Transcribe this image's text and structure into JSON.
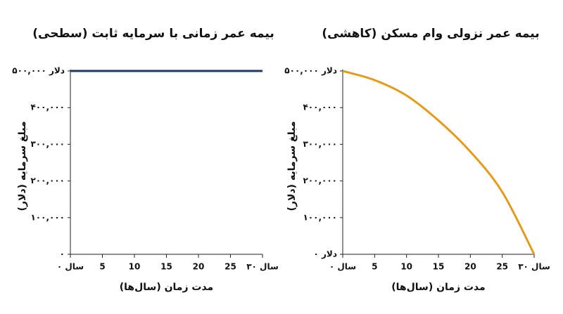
{
  "chart_data": [
    {
      "type": "line",
      "title": "بیمه عمر زمانی با سرمایه ثابت (سطحی)",
      "xlabel": "مدت زمان (سال‌ها)",
      "ylabel": "مبلغ سرمایه (دلار)",
      "x": [
        0,
        30
      ],
      "series": [
        {
          "color": "#1f3864",
          "values": [
            500000,
            500000
          ]
        }
      ],
      "xlim": [
        0,
        30
      ],
      "ylim": [
        0,
        500000
      ],
      "xticks": [
        {
          "value": 0,
          "label": "سال ۰"
        },
        5,
        10,
        15,
        20,
        25,
        {
          "value": 30,
          "label": "سال ۳۰"
        }
      ],
      "yticks": [
        {
          "value": 0,
          "label": "۰"
        },
        {
          "value": 100000,
          "label": "۱۰۰,۰۰۰"
        },
        {
          "value": 200000,
          "label": "۲۰۰,۰۰۰"
        },
        {
          "value": 300000,
          "label": "۳۰۰,۰۰۰"
        },
        {
          "value": 400000,
          "label": "۴۰۰,۰۰۰"
        },
        {
          "value": 500000,
          "label": "۵۰۰,۰۰۰ دلار"
        }
      ],
      "grid": false
    },
    {
      "type": "line",
      "title": "بیمه عمر نزولی وام مسکن (کاهشی)",
      "xlabel": "مدت زمان (سال‌ها)",
      "ylabel": "مبلغ سرمایه (دلار)",
      "x": [
        0,
        5,
        10,
        15,
        20,
        25,
        30
      ],
      "series": [
        {
          "color": "#e39b1b",
          "values": [
            500000,
            475000,
            433000,
            365000,
            280000,
            170000,
            0
          ]
        }
      ],
      "xlim": [
        0,
        30
      ],
      "ylim": [
        0,
        500000
      ],
      "xticks": [
        {
          "value": 0,
          "label": "سال ۰"
        },
        5,
        10,
        15,
        20,
        25,
        {
          "value": 30,
          "label": "سال ۳۰"
        }
      ],
      "yticks": [
        {
          "value": 0,
          "label": "۰ دلار"
        },
        {
          "value": 100000,
          "label": "۱۰۰,۰۰۰"
        },
        {
          "value": 200000,
          "label": "۲۰۰,۰۰۰"
        },
        {
          "value": 300000,
          "label": "۳۰۰,۰۰۰"
        },
        {
          "value": 400000,
          "label": "۴۰۰,۰۰۰"
        },
        {
          "value": 500000,
          "label": "۵۰۰,۰۰۰ دلار"
        }
      ],
      "grid": false
    }
  ]
}
